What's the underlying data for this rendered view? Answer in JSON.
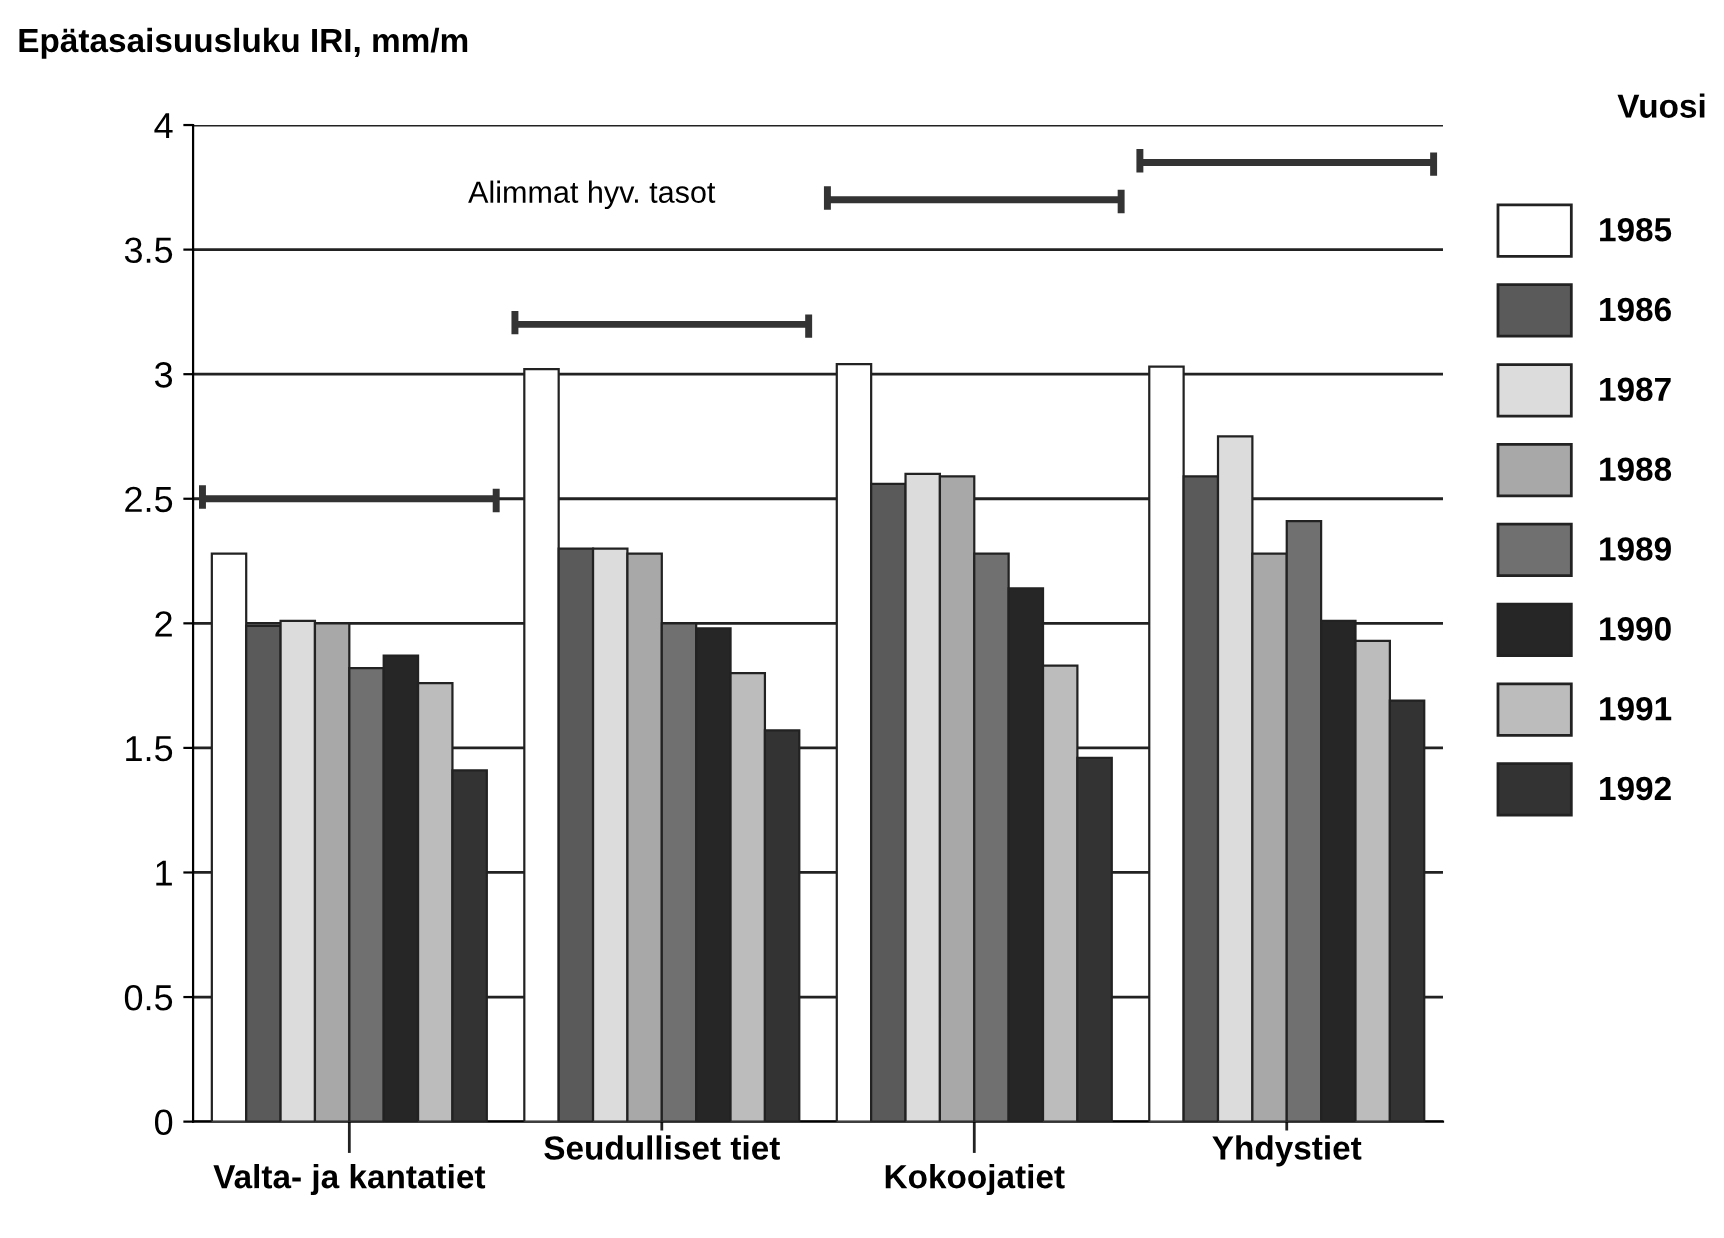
{
  "chart_data": {
    "type": "bar",
    "ylabel": "Epätasaisuusluku IRI, mm/m",
    "legend_title": "Vuosi",
    "categories": [
      "Valta- ja kantatiet",
      "Seudulliset tiet",
      "Kokoojatiet",
      "Yhdystiet"
    ],
    "series": [
      {
        "name": "1985",
        "color": "#ffffff",
        "values": [
          2.28,
          3.02,
          3.04,
          3.03
        ]
      },
      {
        "name": "1986",
        "color": "#5a5a5a",
        "values": [
          1.99,
          2.3,
          2.56,
          2.59
        ]
      },
      {
        "name": "1987",
        "color": "#dcdcdc",
        "values": [
          2.01,
          2.3,
          2.6,
          2.75
        ]
      },
      {
        "name": "1988",
        "color": "#a8a8a8",
        "values": [
          2.0,
          2.28,
          2.59,
          2.28
        ]
      },
      {
        "name": "1989",
        "color": "#707070",
        "values": [
          1.82,
          2.0,
          2.28,
          2.41
        ]
      },
      {
        "name": "1990",
        "color": "#262626",
        "values": [
          1.87,
          1.98,
          2.14,
          2.01
        ]
      },
      {
        "name": "1991",
        "color": "#bcbcbc",
        "values": [
          1.76,
          1.8,
          1.83,
          1.93
        ]
      },
      {
        "name": "1992",
        "color": "#333333",
        "values": [
          1.41,
          1.57,
          1.46,
          1.69
        ]
      }
    ],
    "ylim": [
      0,
      4
    ],
    "yticks": [
      0,
      0.5,
      1,
      1.5,
      2,
      2.5,
      3,
      3.5,
      4
    ],
    "grid": "y",
    "legend": "right",
    "ref_lines": [
      {
        "axis": "y",
        "value": 2.5,
        "label": null,
        "color": "#333333"
      },
      {
        "axis": "y",
        "value": 3.2,
        "label": null,
        "color": "#333333"
      },
      {
        "axis": "y",
        "value": 3.7,
        "label": null,
        "color": "#333333"
      },
      {
        "axis": "y",
        "value": 3.85,
        "label": null,
        "color": "#333333"
      }
    ],
    "annotations": [
      "Alimmat hyv. tasot"
    ]
  }
}
